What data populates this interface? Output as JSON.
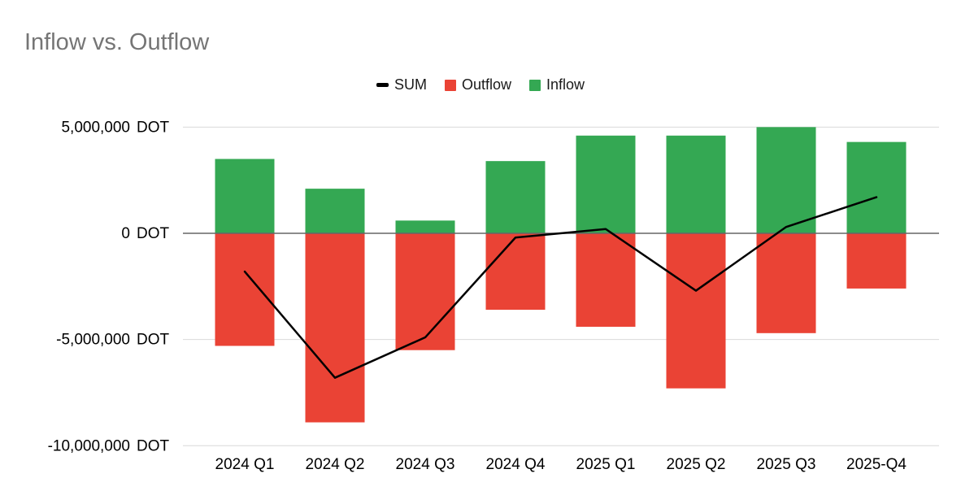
{
  "chart_data": {
    "type": "bar",
    "title": "Inflow vs. Outflow",
    "categories": [
      "2024 Q1",
      "2024 Q2",
      "2024 Q3",
      "2024 Q4",
      "2025 Q1",
      "2025 Q2",
      "2025 Q3",
      "2025-Q4"
    ],
    "series": [
      {
        "name": "SUM",
        "type": "line",
        "color": "#000000",
        "values": [
          -1800000,
          -6800000,
          -4900000,
          -200000,
          200000,
          -2700000,
          300000,
          1700000
        ]
      },
      {
        "name": "Outflow",
        "type": "bar",
        "color": "#ea4335",
        "values": [
          -5300000,
          -8900000,
          -5500000,
          -3600000,
          -4400000,
          -7300000,
          -4700000,
          -2600000
        ]
      },
      {
        "name": "Inflow",
        "type": "bar",
        "color": "#34a853",
        "values": [
          3500000,
          2100000,
          600000,
          3400000,
          4600000,
          4600000,
          5000000,
          4300000
        ]
      }
    ],
    "y_axis": {
      "min": -10000000,
      "max": 5000000,
      "unit": "DOT",
      "ticks": [
        {
          "value": 5000000,
          "label": "5,000,000",
          "unit": "DOT"
        },
        {
          "value": 0,
          "label": "0",
          "unit": "DOT"
        },
        {
          "value": -5000000,
          "label": "-5,000,000",
          "unit": "DOT"
        },
        {
          "value": -10000000,
          "label": "-10,000,000",
          "unit": "DOT"
        }
      ]
    },
    "legend_position": "top-center",
    "grid": true,
    "colors": {
      "gridline": "#d9d9d9",
      "zero_axis": "#666666",
      "axis_text": "#000000",
      "title_text": "#757575"
    }
  }
}
